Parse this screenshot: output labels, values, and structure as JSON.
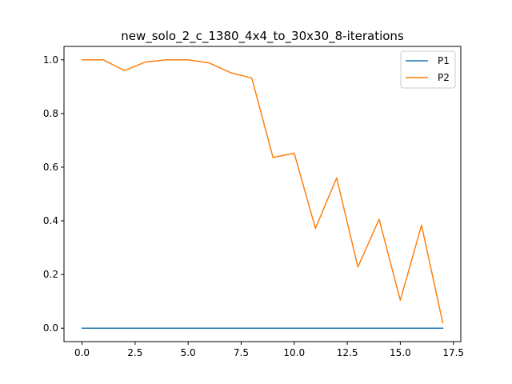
{
  "chart_data": {
    "type": "line",
    "title": "new_solo_2_c_1380_4x4_to_30x30_8-iterations",
    "xlabel": "",
    "ylabel": "",
    "xlim": [
      -0.85,
      17.85
    ],
    "ylim": [
      -0.05,
      1.05
    ],
    "xticks": [
      0.0,
      2.5,
      5.0,
      7.5,
      10.0,
      12.5,
      15.0,
      17.5
    ],
    "xtick_labels": [
      "0.0",
      "2.5",
      "5.0",
      "7.5",
      "10.0",
      "12.5",
      "15.0",
      "17.5"
    ],
    "yticks": [
      0.0,
      0.2,
      0.4,
      0.6,
      0.8,
      1.0
    ],
    "ytick_labels": [
      "0.0",
      "0.2",
      "0.4",
      "0.6",
      "0.8",
      "1.0"
    ],
    "grid": false,
    "legend_position": "top-right",
    "x": [
      0,
      1,
      2,
      3,
      4,
      5,
      6,
      7,
      8,
      9,
      10,
      11,
      12,
      13,
      14,
      15,
      16,
      17
    ],
    "series": [
      {
        "name": "P1",
        "color": "#1f77b4",
        "values": [
          0,
          0,
          0,
          0,
          0,
          0,
          0,
          0,
          0,
          0,
          0,
          0,
          0,
          0,
          0,
          0,
          0,
          0
        ]
      },
      {
        "name": "P2",
        "color": "#ff7f0e",
        "values": [
          1.0,
          1.0,
          0.96,
          0.992,
          1.0,
          1.0,
          0.988,
          0.952,
          0.932,
          0.636,
          0.652,
          0.372,
          0.56,
          0.228,
          0.406,
          0.104,
          0.384,
          0.02
        ]
      }
    ]
  }
}
